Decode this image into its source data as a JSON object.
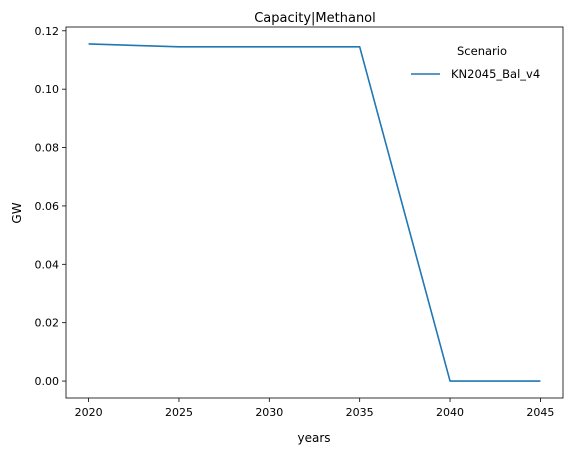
{
  "chart_data": {
    "type": "line",
    "title": "Capacity|Methanol",
    "xlabel": "years",
    "ylabel": "GW",
    "x": [
      2020,
      2025,
      2030,
      2035,
      2040,
      2045
    ],
    "series": [
      {
        "name": "KN2045_Bal_v4",
        "values": [
          0.1155,
          0.1145,
          0.1145,
          0.1145,
          0.0,
          0.0
        ],
        "color": "#1f77b4"
      }
    ],
    "xticks": [
      "2020",
      "2025",
      "2030",
      "2035",
      "2040",
      "2045"
    ],
    "yticks": [
      "0.00",
      "0.02",
      "0.04",
      "0.06",
      "0.08",
      "0.10",
      "0.12"
    ],
    "xlim": [
      2018.75,
      2046.25
    ],
    "ylim": [
      -0.0058,
      0.1213
    ],
    "legend_title": "Scenario",
    "legend_position": "top-right",
    "grid": false
  }
}
